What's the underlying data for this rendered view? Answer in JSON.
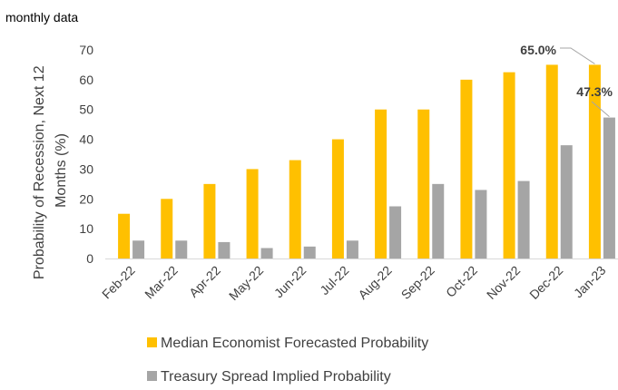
{
  "chart_data": {
    "type": "bar",
    "subtitle": "monthly data",
    "ylabel_line1": "Probability of Recession, Next 12",
    "ylabel_line2": "Months  (%)",
    "ylim": [
      0,
      70
    ],
    "yticks": [
      0,
      10,
      20,
      30,
      40,
      50,
      60,
      70
    ],
    "grid": false,
    "legend_position": "bottom",
    "categories": [
      "Feb-22",
      "Mar-22",
      "Apr-22",
      "May-22",
      "Jun-22",
      "Jul-22",
      "Aug-22",
      "Sep-22",
      "Oct-22",
      "Nov-22",
      "Dec-22",
      "Jan-23"
    ],
    "series": [
      {
        "name": "Median Economist Forecasted Probability",
        "color": "#FFC000",
        "values": [
          15,
          20,
          25,
          30,
          33,
          40,
          50,
          50,
          60,
          62.5,
          65,
          65
        ]
      },
      {
        "name": "Treasury Spread Implied Probability",
        "color": "#A5A5A5",
        "values": [
          6,
          6,
          5.5,
          3.5,
          4,
          6,
          17.5,
          25,
          23,
          26,
          38,
          47.3
        ]
      }
    ],
    "annotations": [
      {
        "text": "65.0%",
        "series": 0,
        "category": "Jan-23"
      },
      {
        "text": "47.3%",
        "series": 1,
        "category": "Jan-23"
      }
    ]
  }
}
